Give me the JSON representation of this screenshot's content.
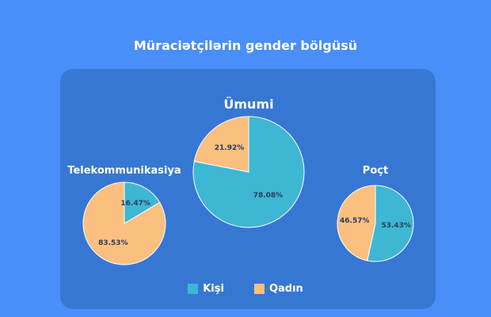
{
  "chart_data": {
    "type": "pie",
    "title": "Müraciətçilərin gender bölgüsü",
    "legend": {
      "placement": "bottom",
      "entries": [
        {
          "name": "Kişi",
          "color": "#3db7d3"
        },
        {
          "name": "Qadın",
          "color": "#fbbf80"
        }
      ]
    },
    "pies": [
      {
        "title": "Ümumi",
        "slices": [
          {
            "category": "Kişi",
            "value": 78.08,
            "label": "78.08%"
          },
          {
            "category": "Qadın",
            "value": 21.92,
            "label": "21.92%"
          }
        ]
      },
      {
        "title": "Telekommunikasiya",
        "slices": [
          {
            "category": "Kişi",
            "value": 16.47,
            "label": "16.47%"
          },
          {
            "category": "Qadın",
            "value": 83.53,
            "label": "83.53%"
          }
        ]
      },
      {
        "title": "Poçt",
        "slices": [
          {
            "category": "Kişi",
            "value": 53.43,
            "label": "53.43%"
          },
          {
            "category": "Qadın",
            "value": 46.57,
            "label": "46.57%"
          }
        ]
      }
    ]
  }
}
